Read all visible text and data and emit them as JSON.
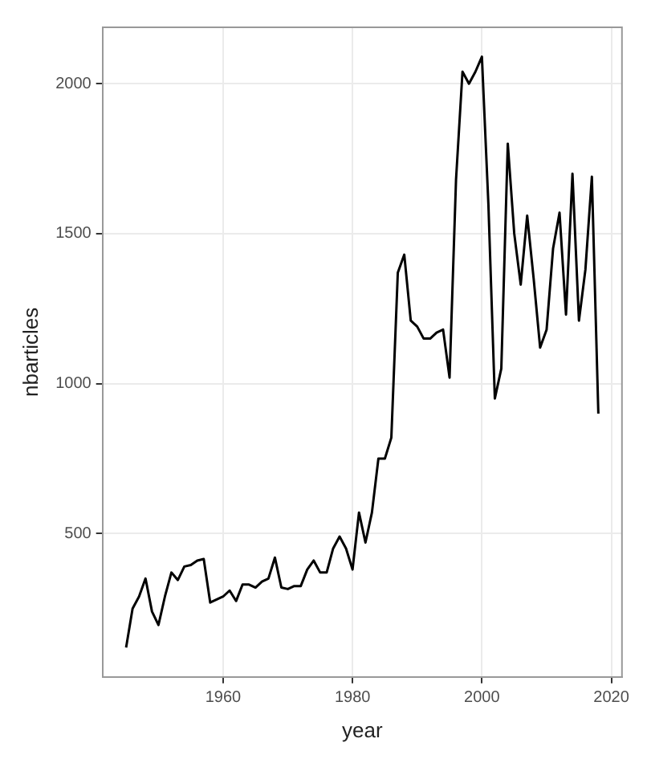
{
  "chart_data": {
    "type": "line",
    "xlabel": "year",
    "ylabel": "nbarticles",
    "x": [
      1945,
      1946,
      1947,
      1948,
      1949,
      1950,
      1951,
      1952,
      1953,
      1954,
      1955,
      1956,
      1957,
      1958,
      1959,
      1960,
      1961,
      1962,
      1963,
      1964,
      1965,
      1966,
      1967,
      1968,
      1969,
      1970,
      1971,
      1972,
      1973,
      1974,
      1975,
      1976,
      1977,
      1978,
      1979,
      1980,
      1981,
      1982,
      1983,
      1984,
      1985,
      1986,
      1987,
      1988,
      1989,
      1990,
      1991,
      1992,
      1993,
      1994,
      1995,
      1996,
      1997,
      1998,
      1999,
      2000,
      2001,
      2002,
      2003,
      2004,
      2005,
      2006,
      2007,
      2008,
      2009,
      2010,
      2011,
      2012,
      2013,
      2014,
      2015,
      2016,
      2017,
      2018
    ],
    "series": [
      {
        "color": "#000000",
        "values": [
          120,
          250,
          290,
          350,
          240,
          195,
          290,
          370,
          345,
          390,
          395,
          410,
          415,
          270,
          280,
          290,
          310,
          275,
          330,
          330,
          320,
          340,
          350,
          420,
          320,
          315,
          325,
          325,
          380,
          410,
          370,
          370,
          450,
          490,
          450,
          380,
          570,
          470,
          570,
          750,
          750,
          820,
          1370,
          1430,
          1210,
          1190,
          1150,
          1150,
          1170,
          1180,
          1020,
          1680,
          2040,
          2000,
          2040,
          2090,
          1600,
          950,
          1050,
          1800,
          1500,
          1330,
          1560,
          1350,
          1120,
          1180,
          1450,
          1570,
          1230,
          1700,
          1210,
          1380,
          1690,
          900
        ]
      }
    ],
    "xlim": [
      1941.35,
      2021.65
    ],
    "xticks": [
      1960,
      1980,
      2000,
      2020
    ],
    "ylim": [
      22,
      2188
    ],
    "yticks": [
      500,
      1000,
      1500,
      2000
    ],
    "grid": true,
    "legend": false,
    "marker": "none",
    "line_style": "solid"
  }
}
